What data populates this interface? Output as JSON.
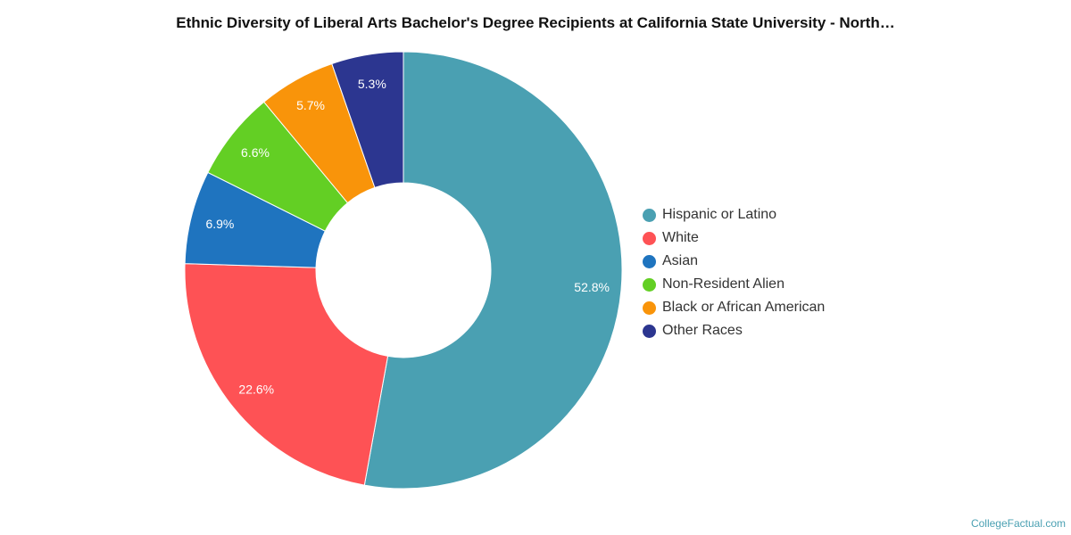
{
  "chart_data": {
    "type": "pie",
    "title": "Ethnic Diversity of Liberal Arts Bachelor's Degree Recipients at California State University - North…",
    "donut": true,
    "legend_position": "right",
    "slices": [
      {
        "label": "Hispanic or Latino",
        "value": 52.8,
        "display": "52.8%",
        "color": "#4aa0b2"
      },
      {
        "label": "White",
        "value": 22.6,
        "display": "22.6%",
        "color": "#fe5255"
      },
      {
        "label": "Asian",
        "value": 6.9,
        "display": "6.9%",
        "color": "#1f74bf"
      },
      {
        "label": "Non-Resident Alien",
        "value": 6.6,
        "display": "6.6%",
        "color": "#63cf24"
      },
      {
        "label": "Black or African American",
        "value": 5.7,
        "display": "5.7%",
        "color": "#f9940a"
      },
      {
        "label": "Other Races",
        "value": 5.3,
        "display": "5.3%",
        "color": "#2c3690"
      }
    ]
  },
  "watermark": "CollegeFactual.com"
}
